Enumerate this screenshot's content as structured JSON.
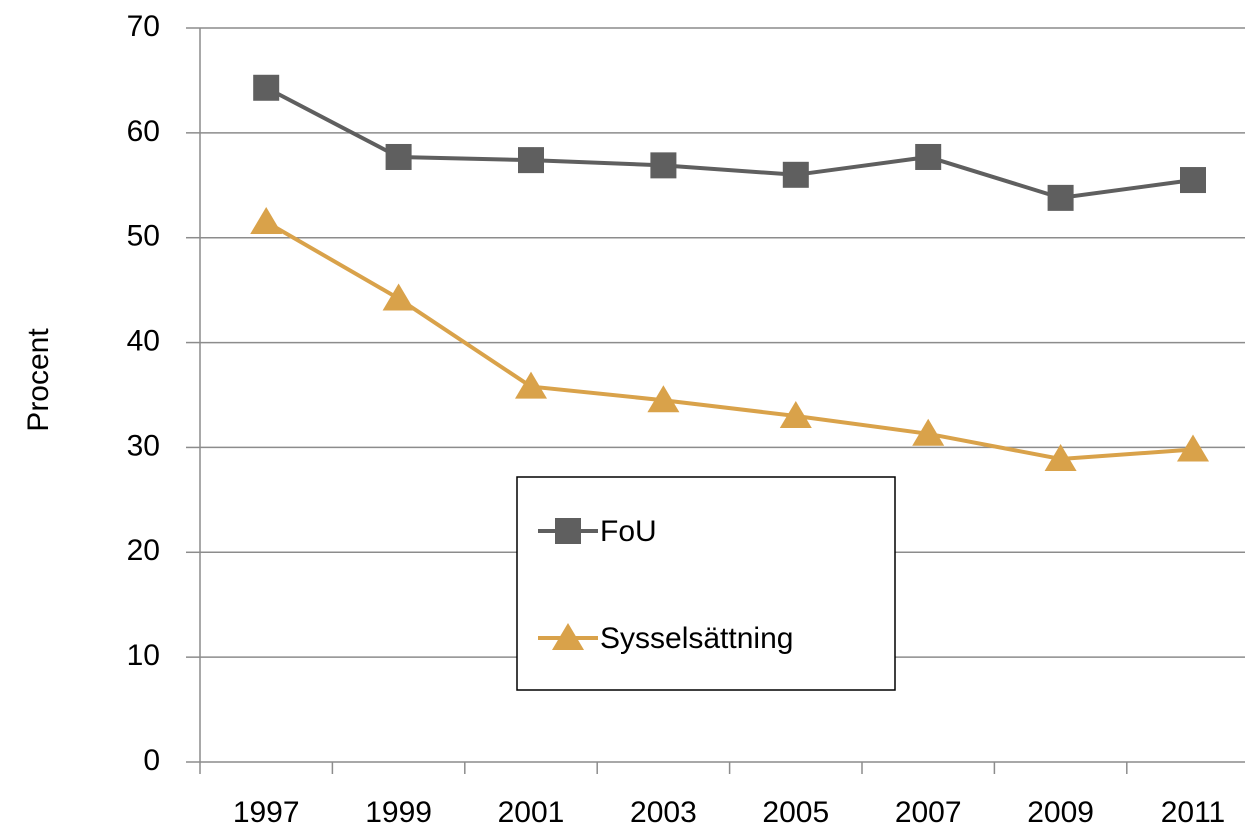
{
  "chart_data": {
    "type": "line",
    "y_label": "Procent",
    "categories": [
      "1997",
      "1999",
      "2001",
      "2003",
      "2005",
      "2007",
      "2009",
      "2011"
    ],
    "series": [
      {
        "name": "FoU",
        "color": "#5f5f5f",
        "marker": "square",
        "values": [
          64.3,
          57.7,
          57.4,
          56.9,
          56.0,
          57.7,
          53.8,
          55.5
        ]
      },
      {
        "name": "Sysselsättning",
        "color": "#d9a24a",
        "marker": "triangle",
        "values": [
          51.5,
          44.2,
          35.8,
          34.5,
          33.0,
          31.3,
          28.9,
          29.8
        ]
      }
    ],
    "ylim": [
      0,
      70
    ],
    "yticks": [
      0,
      10,
      20,
      30,
      40,
      50,
      60,
      70
    ],
    "grid": true
  }
}
